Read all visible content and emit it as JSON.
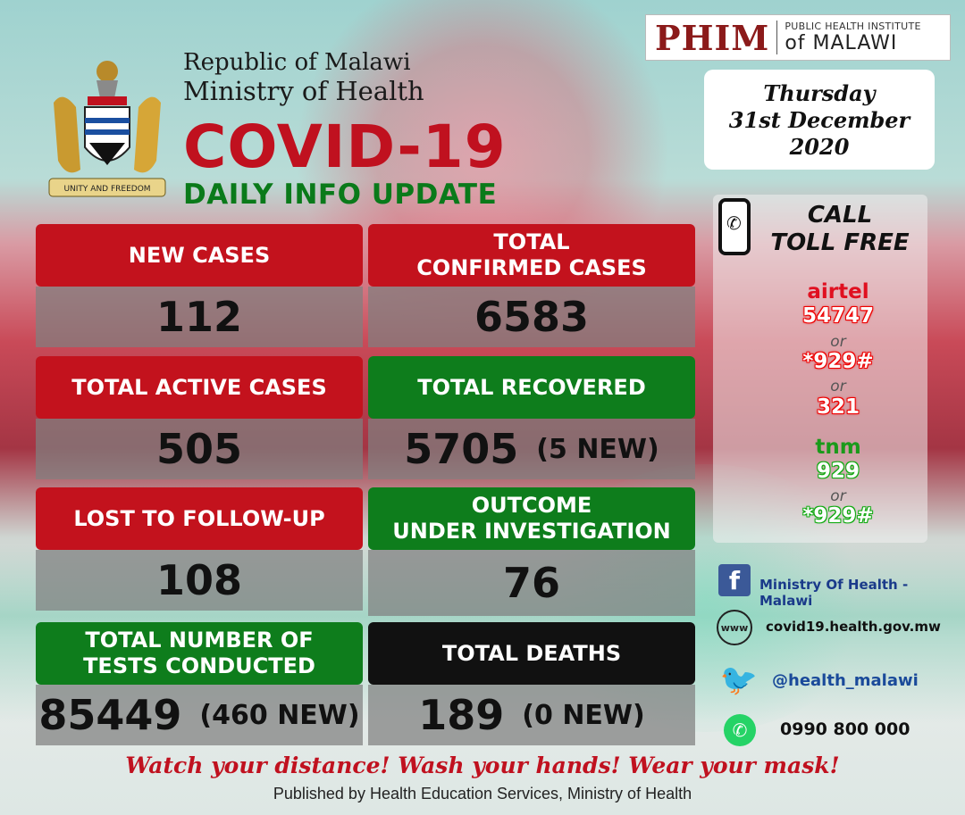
{
  "header": {
    "republic": "Republic of Malawi",
    "ministry": "Ministry of Health",
    "title": "COVID-19",
    "subtitle": "DAILY INFO UPDATE",
    "coat_motto": "UNITY AND FREEDOM"
  },
  "phim": {
    "logo": "PHIM",
    "small": "PUBLIC HEALTH INSTITUTE",
    "big": "of MALAWI"
  },
  "date": {
    "day": "Thursday",
    "date": "31st December",
    "year": "2020"
  },
  "stats": {
    "new_cases": {
      "label": "NEW CASES",
      "value": "112"
    },
    "total_confirmed": {
      "label1": "TOTAL",
      "label2": "CONFIRMED CASES",
      "value": "6583"
    },
    "active": {
      "label": "TOTAL ACTIVE CASES",
      "value": "505"
    },
    "recovered": {
      "label": "TOTAL RECOVERED",
      "value": "5705",
      "note": "(5 NEW)"
    },
    "lost": {
      "label": "LOST TO FOLLOW-UP",
      "value": "108"
    },
    "outcome": {
      "label1": "OUTCOME",
      "label2": "UNDER INVESTIGATION",
      "value": "76"
    },
    "tests": {
      "label1": "TOTAL NUMBER OF",
      "label2": "TESTS CONDUCTED",
      "value": "85449",
      "note": "(460 NEW)"
    },
    "deaths": {
      "label": "TOTAL DEATHS",
      "value": "189",
      "note": "(0 NEW)"
    }
  },
  "toll": {
    "call1": "CALL",
    "call2": "TOLL FREE",
    "airtel": "airtel",
    "airtel_nums": [
      "54747",
      "*929#",
      "321"
    ],
    "tnm": "tnm",
    "tnm_nums": [
      "929",
      "*929#"
    ],
    "or": "or"
  },
  "social": {
    "facebook": "Ministry Of Health - Malawi",
    "website": "covid19.health.gov.mw",
    "twitter": "@health_malawi",
    "whatsapp": "0990 800 000",
    "www_label": "www"
  },
  "footer": {
    "slogan": "Watch your distance! Wash your hands! Wear your mask!",
    "published": "Published by Health Education Services, Ministry of Health"
  },
  "colors": {
    "red": "#c3121d",
    "green": "#0e7d1c",
    "black": "#111111"
  }
}
